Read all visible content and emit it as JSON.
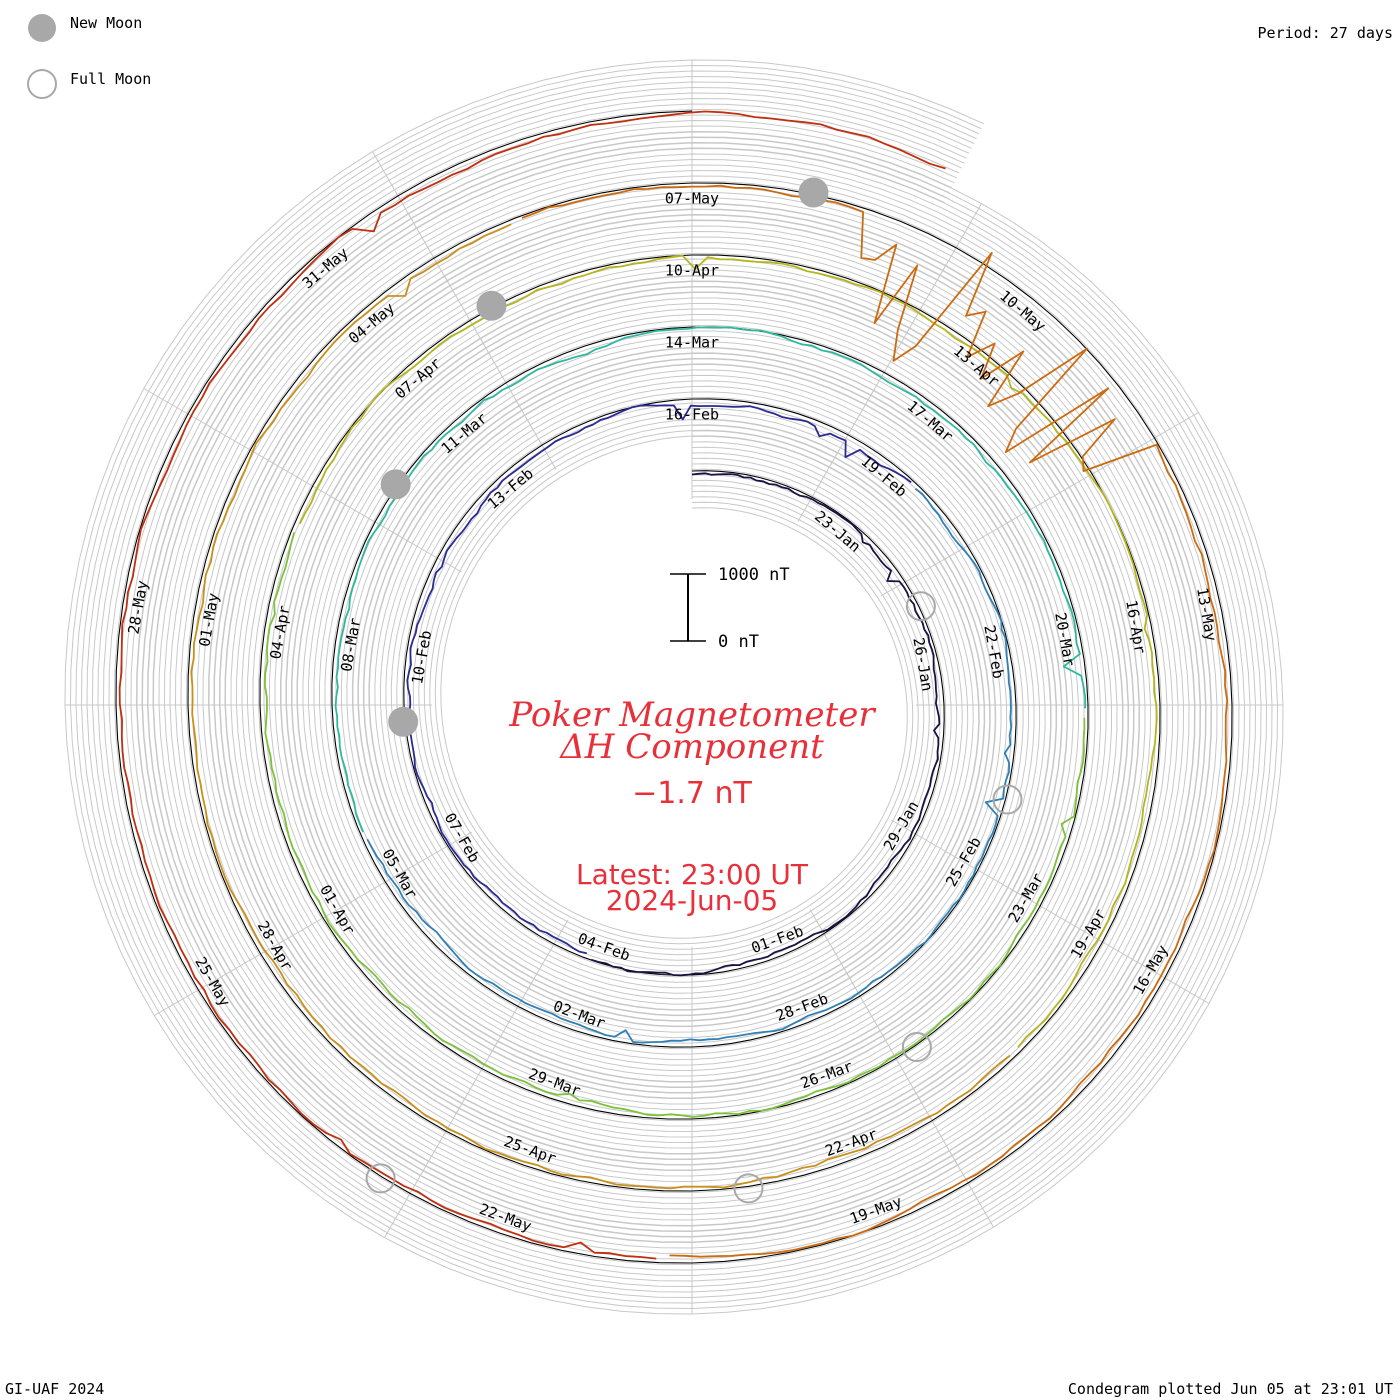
{
  "legend": {
    "new_moon": "New Moon",
    "full_moon": "Full Moon"
  },
  "period_text": "Period: 27 days",
  "footer_left": "GI-UAF 2024",
  "footer_right": "Condegram plotted Jun 05 at 23:01 UT",
  "title_line1": "Poker Magnetometer",
  "title_line2": "ΔH Component",
  "current_value": "−1.7 nT",
  "latest_line1": "Latest: 23:00 UT",
  "latest_line2": "2024-Jun-05",
  "scale_bar": {
    "top_label": "1000 nT",
    "bottom_label": "0 nT"
  },
  "colors": {
    "label_red": "#e8303a",
    "grid": "#c8c8c8",
    "moon_fill": "#a8a8a8",
    "ring_colors": [
      "#1b1144",
      "#2a2a95",
      "#2f80b5",
      "#2fb8a0",
      "#7cc23a",
      "#b5b51e",
      "#c8901a",
      "#cc6a10",
      "#c03010"
    ]
  },
  "chart_data": {
    "type": "condegram",
    "period_days": 27,
    "series": [
      {
        "labels": [
          "23-Jan",
          "26-Jan",
          "29-Jan",
          "01-Feb",
          "04-Feb",
          "07-Feb",
          "10-Feb",
          "13-Feb",
          "16-Feb"
        ]
      },
      {
        "labels": [
          "19-Feb",
          "22-Feb",
          "25-Feb",
          "28-Feb",
          "02-Mar",
          "05-Mar",
          "08-Mar",
          "11-Mar",
          "14-Mar"
        ]
      },
      {
        "labels": [
          "17-Mar",
          "20-Mar",
          "23-Mar",
          "26-Mar",
          "29-Mar",
          "01-Apr",
          "04-Apr",
          "07-Apr",
          "10-Apr"
        ]
      },
      {
        "labels": [
          "13-Apr",
          "16-Apr",
          "19-Apr",
          "22-Apr",
          "25-Apr",
          "28-Apr",
          "01-May",
          "04-May",
          "07-May"
        ]
      },
      {
        "labels": [
          "10-May",
          "13-May",
          "16-May",
          "19-May",
          "22-May",
          "25-May",
          "28-May",
          "31-May"
        ]
      }
    ],
    "new_moon_dates": [
      "09-Feb",
      "10-Mar",
      "08-Apr",
      "08-May"
    ],
    "full_moon_dates": [
      "25-Jan",
      "24-Feb",
      "25-Mar",
      "23-Apr",
      "23-May"
    ],
    "y_scale_nT": [
      0,
      1000
    ]
  }
}
